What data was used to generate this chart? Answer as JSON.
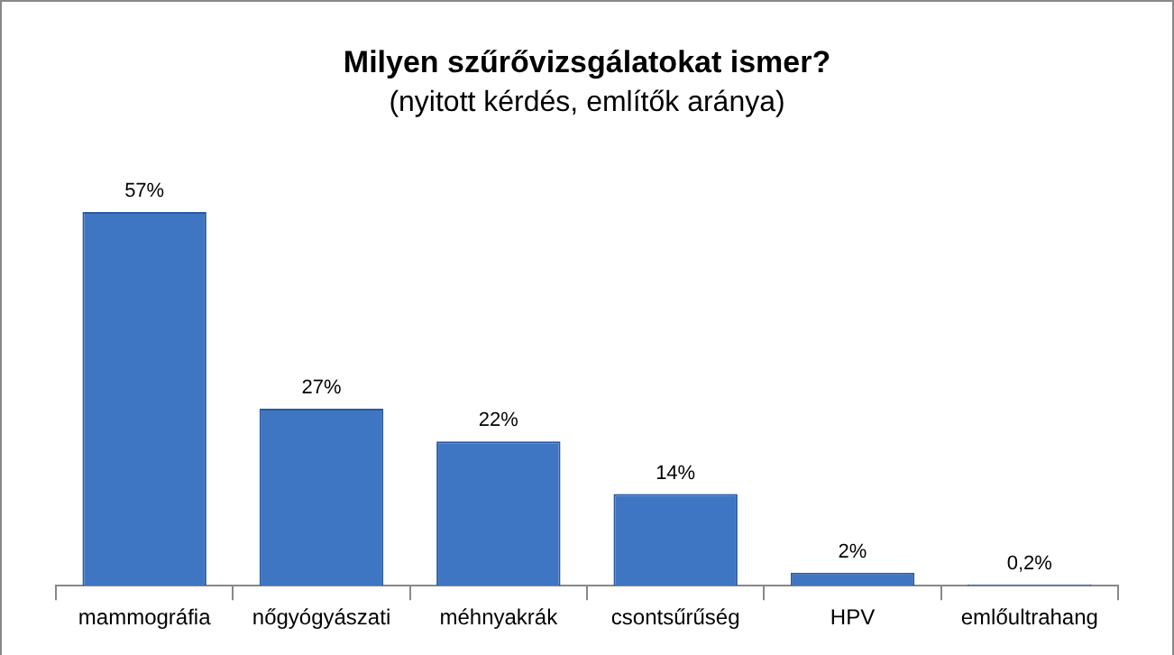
{
  "chart_data": {
    "type": "bar",
    "title": "Milyen szűrővizsgálatokat ismer?",
    "subtitle": "(nyitott kérdés, említők aránya)",
    "categories": [
      "mammográfia",
      "nőgyógyászati",
      "méhnyakrák",
      "csontsűrűség",
      "HPV",
      "emlőultrahang"
    ],
    "values": [
      57,
      27,
      22,
      14,
      2,
      0.2
    ],
    "value_labels": [
      "57%",
      "27%",
      "22%",
      "14%",
      "2%",
      "0,2%"
    ],
    "color": "#3f76c4",
    "legend": false
  }
}
